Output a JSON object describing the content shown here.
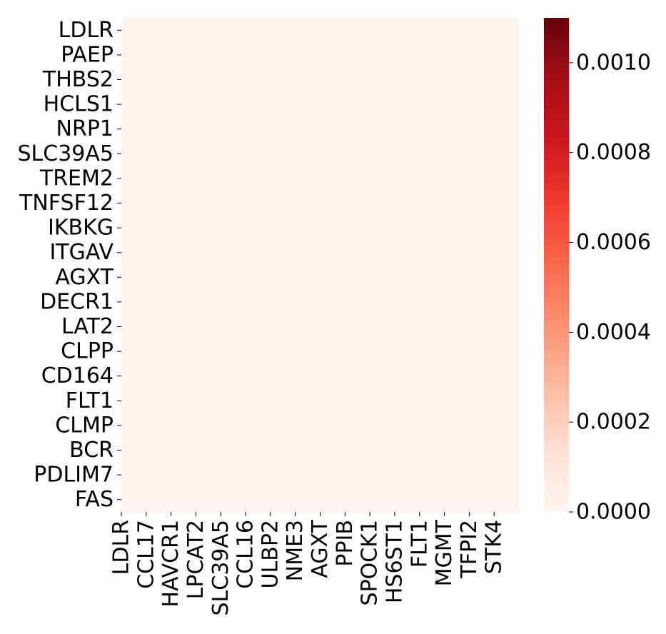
{
  "chart_data": {
    "type": "heatmap",
    "title": "",
    "xlabel": "",
    "ylabel": "",
    "row_labels": [
      "LDLR",
      "PAEP",
      "THBS2",
      "HCLS1",
      "NRP1",
      "SLC39A5",
      "TREM2",
      "TNFSF12",
      "IKBKG",
      "ITGAV",
      "AGXT",
      "DECR1",
      "LAT2",
      "CLPP",
      "CD164",
      "FLT1",
      "CLMP",
      "BCR",
      "PDLIM7",
      "FAS"
    ],
    "x_tick_labels": [
      "LDLR",
      "CCL17",
      "HAVCR1",
      "LPCAT2",
      "SLC39A5",
      "CCL16",
      "ULBP2",
      "NME3",
      "AGXT",
      "PPIB",
      "SPOCK1",
      "HS6ST1",
      "FLT1",
      "MGMT",
      "TFPI2",
      "STK4"
    ],
    "n_columns": 16,
    "fill_value": 0.0,
    "colormap": "Reds",
    "colorbar": {
      "range": [
        0.0,
        0.0011
      ],
      "ticks": [
        0.0,
        0.0002,
        0.0004,
        0.0006,
        0.0008,
        0.001
      ],
      "tick_labels": [
        "0.0000",
        "0.0002",
        "0.0004",
        "0.0006",
        "0.0008",
        "0.0010"
      ],
      "colors": [
        "#fff5f0",
        "#fee0d2",
        "#fcbba1",
        "#fc9272",
        "#fb6a4a",
        "#ef3b2c",
        "#cb181d",
        "#a50f15",
        "#67000d"
      ]
    }
  }
}
